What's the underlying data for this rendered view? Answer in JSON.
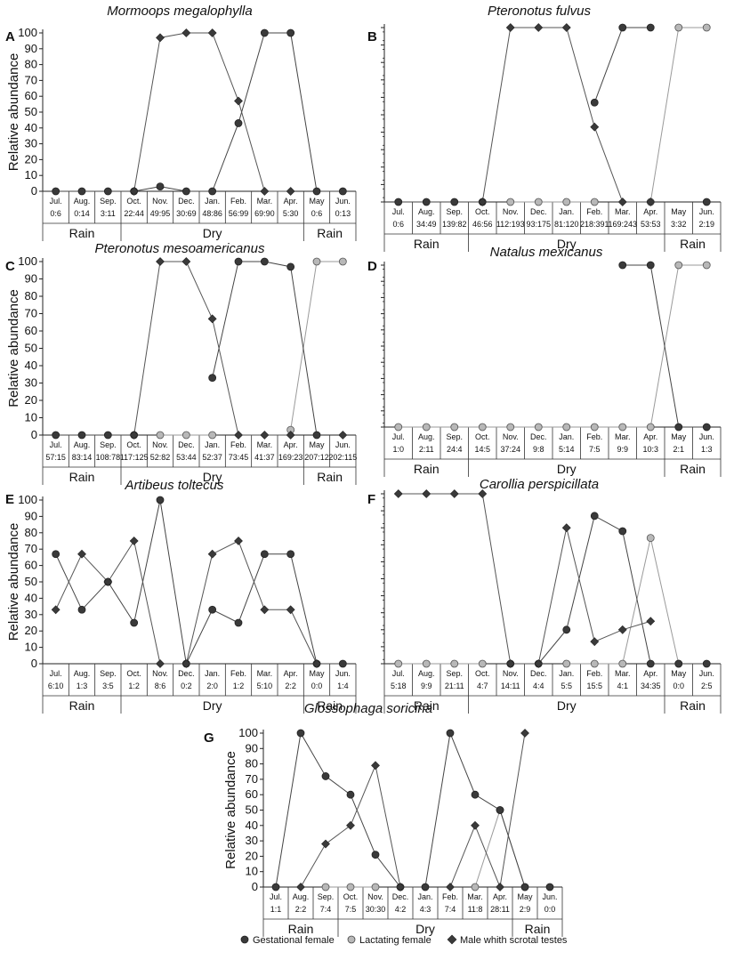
{
  "legend": {
    "gestational": "Gestational female",
    "lactating": "Lactating female",
    "male": "Male whith scrotal testes"
  },
  "colors": {
    "gestational": "#3a3a3a",
    "lactating": "#b8b8b8",
    "male": "#3a3a3a",
    "line_gestational": "#444444",
    "line_lactating": "#9a9a9a",
    "line_male": "#555555"
  },
  "chart_data": [
    {
      "id": "A",
      "type": "line",
      "title": "Mormoops megalophylla",
      "ylabel": "Relative abundance",
      "ylim": [
        0,
        100
      ],
      "yticks": [
        "0",
        "10",
        "20",
        "30",
        "40",
        "50",
        "60",
        "70",
        "80",
        "90",
        "100"
      ],
      "categories": [
        "Jul.",
        "Aug.",
        "Sep.",
        "Oct.",
        "Nov.",
        "Dec.",
        "Jan.",
        "Feb.",
        "Mar.",
        "Apr.",
        "May",
        "Jun."
      ],
      "samples": [
        "0:6",
        "0:14",
        "3:11",
        "22:44",
        "49:95",
        "30:69",
        "48:86",
        "56:99",
        "69:90",
        "5:30",
        "0:6",
        "0:13"
      ],
      "seasons": [
        "Rain",
        "Dry",
        "Rain"
      ],
      "series": [
        {
          "key": "gestational",
          "values": [
            0,
            0,
            0,
            0,
            3,
            0,
            0,
            43,
            100,
            100,
            0,
            0
          ]
        },
        {
          "key": "male",
          "values": [
            null,
            null,
            null,
            0,
            97,
            100,
            100,
            57,
            0,
            0,
            null,
            null
          ]
        }
      ]
    },
    {
      "id": "B",
      "type": "line",
      "title": "Pteronotus fulvus",
      "ylabel": "",
      "ylim": [
        0,
        100
      ],
      "yticks": [],
      "categories": [
        "Jul.",
        "Aug.",
        "Sep.",
        "Oct.",
        "Nov.",
        "Dec.",
        "Jan.",
        "Feb.",
        "Mar.",
        "Apr.",
        "May",
        "Jun."
      ],
      "samples": [
        "0:6",
        "34:49",
        "139:82",
        "46:56",
        "112:193",
        "93:175",
        "81:120",
        "218:391",
        "169:243",
        "53:53",
        "3:32",
        "2:19"
      ],
      "seasons": [
        "Rain",
        "Dry",
        "Rain"
      ],
      "series": [
        {
          "key": "gestational",
          "values": [
            0,
            0,
            0,
            0,
            null,
            null,
            null,
            57,
            100,
            100,
            null,
            0
          ]
        },
        {
          "key": "lactating",
          "values": [
            null,
            null,
            null,
            null,
            0,
            0,
            0,
            0,
            null,
            0,
            100,
            100
          ]
        },
        {
          "key": "male",
          "values": [
            null,
            null,
            null,
            0,
            100,
            100,
            100,
            43,
            0,
            0,
            null,
            null
          ]
        }
      ]
    },
    {
      "id": "C",
      "type": "line",
      "title": "Pteronotus mesoamericanus",
      "ylabel": "Relative abundance",
      "ylim": [
        0,
        100
      ],
      "yticks": [
        "0",
        "10",
        "20",
        "30",
        "40",
        "50",
        "60",
        "70",
        "80",
        "90",
        "100"
      ],
      "categories": [
        "Jul.",
        "Aug.",
        "Sep.",
        "Oct.",
        "Nov.",
        "Dec.",
        "Jan.",
        "Feb.",
        "Mar.",
        "Apr.",
        "May",
        "Jun."
      ],
      "samples": [
        "57:15",
        "83:14",
        "108:78",
        "117:125",
        "52:82",
        "53:44",
        "52:37",
        "73:45",
        "41:37",
        "169:23",
        "207:12",
        "202:115"
      ],
      "seasons": [
        "Rain",
        "Dry",
        "Rain"
      ],
      "series": [
        {
          "key": "gestational",
          "values": [
            0,
            0,
            0,
            0,
            null,
            null,
            33,
            100,
            100,
            97,
            0,
            null
          ]
        },
        {
          "key": "lactating",
          "values": [
            null,
            null,
            null,
            null,
            0,
            0,
            0,
            null,
            null,
            3,
            100,
            100
          ]
        },
        {
          "key": "male",
          "values": [
            null,
            null,
            null,
            0,
            100,
            100,
            67,
            0,
            0,
            0,
            null,
            0
          ]
        }
      ]
    },
    {
      "id": "D",
      "type": "line",
      "title": "Natalus mexicanus",
      "ylabel": "",
      "ylim": [
        0,
        100
      ],
      "yticks": [],
      "categories": [
        "Jul.",
        "Aug.",
        "Sep.",
        "Oct.",
        "Nov.",
        "Dec.",
        "Jan.",
        "Feb.",
        "Mar.",
        "Apr.",
        "May",
        "Jun."
      ],
      "samples": [
        "1:0",
        "2:11",
        "24:4",
        "14:5",
        "37:24",
        "9:8",
        "5:14",
        "7:5",
        "9:9",
        "10:3",
        "2:1",
        "1:3"
      ],
      "seasons": [
        "Rain",
        "Dry",
        "Rain"
      ],
      "series": [
        {
          "key": "gestational",
          "values": [
            null,
            null,
            null,
            null,
            null,
            null,
            null,
            null,
            100,
            100,
            0,
            0
          ]
        },
        {
          "key": "lactating",
          "values": [
            0,
            0,
            0,
            0,
            0,
            0,
            0,
            0,
            0,
            0,
            100,
            100
          ]
        }
      ]
    },
    {
      "id": "E",
      "type": "line",
      "title": "Artibeus toltecus",
      "ylabel": "Relative abundance",
      "ylim": [
        0,
        100
      ],
      "yticks": [
        "0",
        "10",
        "20",
        "30",
        "40",
        "50",
        "60",
        "70",
        "80",
        "90",
        "100"
      ],
      "categories": [
        "Jul.",
        "Aug.",
        "Sep.",
        "Oct.",
        "Nov.",
        "Dec.",
        "Jan.",
        "Feb.",
        "Mar.",
        "Apr.",
        "May",
        "Jun."
      ],
      "samples": [
        "6:10",
        "1:3",
        "3:5",
        "1:2",
        "8:6",
        "0:2",
        "2:0",
        "1:2",
        "5:10",
        "2:2",
        "0:0",
        "1:4"
      ],
      "seasons": [
        "Rain",
        "Dry",
        "Rain"
      ],
      "series": [
        {
          "key": "gestational",
          "values": [
            67,
            33,
            50,
            25,
            100,
            0,
            33,
            25,
            67,
            67,
            0,
            0
          ]
        },
        {
          "key": "male",
          "values": [
            33,
            67,
            50,
            75,
            0,
            0,
            67,
            75,
            33,
            33,
            0,
            null
          ]
        }
      ]
    },
    {
      "id": "F",
      "type": "line",
      "title": "Carollia perspicillata",
      "ylabel": "",
      "ylim": [
        0,
        100
      ],
      "yticks": [],
      "categories": [
        "Jul.",
        "Aug.",
        "Sep.",
        "Oct.",
        "Nov.",
        "Dec.",
        "Jan.",
        "Feb.",
        "Mar.",
        "Apr.",
        "May",
        "Jun."
      ],
      "samples": [
        "5:18",
        "9:9",
        "21:11",
        "4:7",
        "14:11",
        "4:4",
        "5:5",
        "15:5",
        "4:1",
        "34:35",
        "0:0",
        "2:5"
      ],
      "seasons": [
        "Rain",
        "Dry",
        "Rain"
      ],
      "series": [
        {
          "key": "gestational",
          "values": [
            null,
            null,
            null,
            null,
            0,
            0,
            20,
            87,
            78,
            0,
            0,
            0
          ]
        },
        {
          "key": "lactating",
          "values": [
            0,
            0,
            0,
            0,
            null,
            null,
            0,
            0,
            0,
            74,
            0,
            null
          ]
        },
        {
          "key": "male",
          "values": [
            100,
            100,
            100,
            100,
            0,
            0,
            80,
            13,
            20,
            25,
            null,
            null
          ]
        }
      ]
    },
    {
      "id": "G",
      "type": "line",
      "title": "Glossophaga soricina",
      "ylabel": "Relative abundance",
      "ylim": [
        0,
        100
      ],
      "yticks": [
        "0",
        "10",
        "20",
        "30",
        "40",
        "50",
        "60",
        "70",
        "80",
        "90",
        "100"
      ],
      "categories": [
        "Jul.",
        "Aug.",
        "Sep.",
        "Oct.",
        "Nov.",
        "Dec.",
        "Jan.",
        "Feb.",
        "Mar.",
        "Apr.",
        "May",
        "Jun."
      ],
      "samples": [
        "1:1",
        "2:2",
        "7:4",
        "7:5",
        "30:30",
        "4:2",
        "4:3",
        "7:4",
        "11:8",
        "28:11",
        "2:9",
        "0:0"
      ],
      "seasons": [
        "Rain",
        "Dry",
        "Rain"
      ],
      "series": [
        {
          "key": "gestational",
          "values": [
            0,
            100,
            72,
            60,
            21,
            0,
            0,
            100,
            60,
            50,
            0,
            0
          ]
        },
        {
          "key": "lactating",
          "values": [
            null,
            null,
            0,
            0,
            0,
            null,
            null,
            null,
            0,
            50,
            0,
            null
          ]
        },
        {
          "key": "male",
          "values": [
            null,
            0,
            28,
            40,
            79,
            0,
            null,
            0,
            40,
            0,
            100,
            null
          ]
        }
      ]
    }
  ]
}
